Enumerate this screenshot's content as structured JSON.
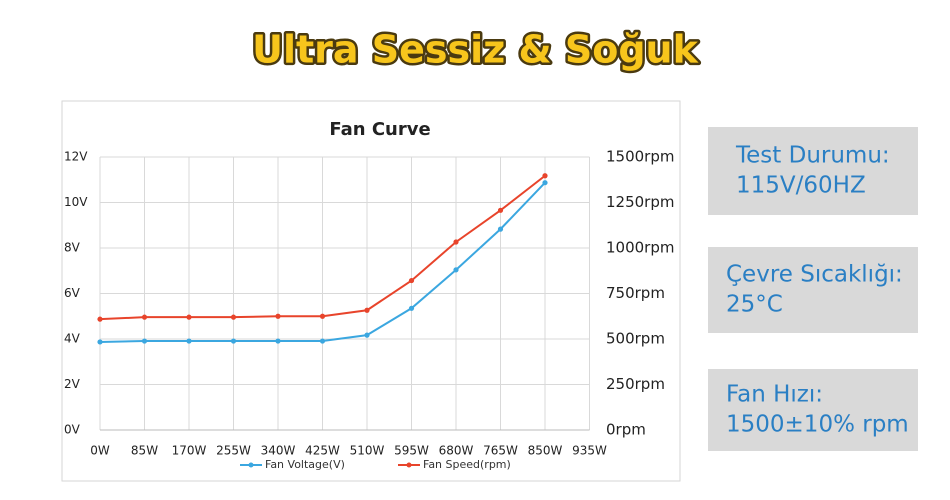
{
  "header": {
    "title": "Ultra Sessiz & Soğuk"
  },
  "chart_data": {
    "type": "line",
    "title": "Fan Curve",
    "categories": [
      "0W",
      "85W",
      "170W",
      "255W",
      "340W",
      "425W",
      "510W",
      "595W",
      "680W",
      "765W",
      "850W",
      "935W"
    ],
    "series": [
      {
        "name": "Fan Voltage(V)",
        "color": "#3ba7e0",
        "values": [
          3.87,
          3.91,
          3.91,
          3.91,
          3.91,
          3.91,
          4.17,
          5.35,
          7.04,
          8.83,
          10.87,
          null
        ]
      },
      {
        "name": "Fan Speed(rpm)",
        "color": "#e8442b",
        "axis": "y2",
        "values": [
          609,
          620,
          620,
          620,
          625,
          625,
          658,
          821,
          1033,
          1207,
          1397,
          null
        ]
      }
    ],
    "ylim": [
      0,
      12
    ],
    "yticks": [
      {
        "value": 0,
        "label": "0V"
      },
      {
        "value": 2,
        "label": "2V"
      },
      {
        "value": 4,
        "label": "4V"
      },
      {
        "value": 6,
        "label": "6V"
      },
      {
        "value": 8,
        "label": "8V"
      },
      {
        "value": 10,
        "label": "10V"
      },
      {
        "value": 12,
        "label": "12V"
      }
    ],
    "y2lim": [
      0,
      1500
    ],
    "y2ticks": [
      {
        "value": 0,
        "label": "0rpm"
      },
      {
        "value": 250,
        "label": "250rpm"
      },
      {
        "value": 500,
        "label": "500rpm"
      },
      {
        "value": 750,
        "label": "750rpm"
      },
      {
        "value": 1000,
        "label": "1000rpm"
      },
      {
        "value": 1250,
        "label": "1250rpm"
      },
      {
        "value": 1500,
        "label": "1500rpm"
      }
    ],
    "grid": true,
    "legend": "bottom"
  },
  "panels": [
    {
      "lines": [
        "Test Durumu:",
        "115V/60HZ"
      ]
    },
    {
      "lines": [
        "Çevre Sıcaklığı:",
        "25°C"
      ]
    },
    {
      "lines": [
        "Fan Hızı:",
        "1500±10% rpm"
      ]
    }
  ]
}
